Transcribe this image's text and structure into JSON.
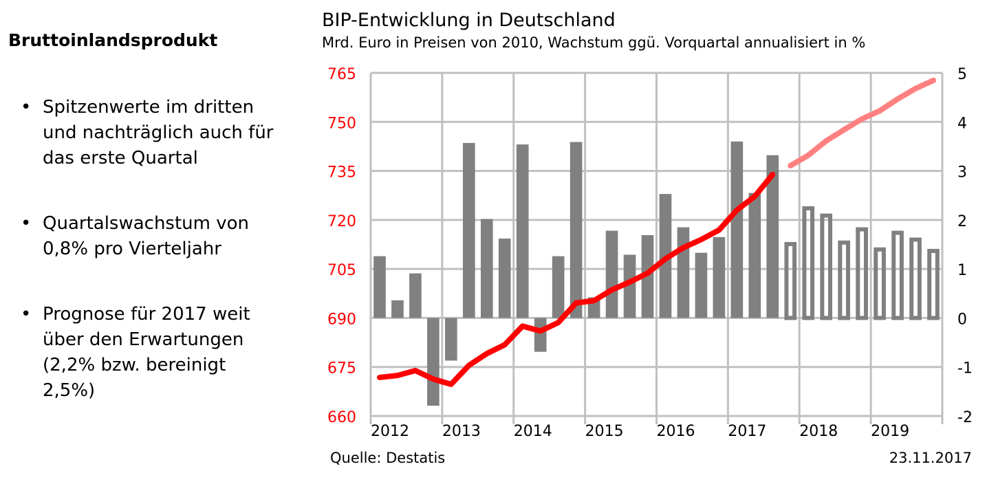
{
  "sidebar": {
    "heading": "Bruttoinlandsprodukt",
    "bullets": [
      "Spitzenwerte im dritten und nachträglich auch für das erste Quartal",
      "Quartalswachstum von 0,8% pro Vierteljahr",
      "Prognose für 2017 weit über den Erwartungen (2,2% bzw. bereinigt 2,5%)"
    ]
  },
  "footer": {
    "source": "Quelle: Destatis",
    "date": "23.11.2017"
  },
  "chart_data": {
    "type": "bar+line",
    "title": "BIP-Entwicklung in Deutschland",
    "subtitle": "Mrd. Euro in Preisen von 2010, Wachstum ggü. Vorquartal annualisiert in %",
    "x_ticks": [
      "2012",
      "2013",
      "2014",
      "2015",
      "2016",
      "2017",
      "2018",
      "2019"
    ],
    "y_left": {
      "range": [
        660,
        765
      ],
      "ticks": [
        660,
        675,
        690,
        705,
        720,
        735,
        750,
        765
      ],
      "color": "#ff0000"
    },
    "y_right": {
      "range": [
        -2,
        5
      ],
      "ticks": [
        -2,
        -1,
        0,
        1,
        2,
        3,
        4,
        5
      ]
    },
    "grid": true,
    "quarters": [
      "2012Q1",
      "2012Q2",
      "2012Q3",
      "2012Q4",
      "2013Q1",
      "2013Q2",
      "2013Q3",
      "2013Q4",
      "2014Q1",
      "2014Q2",
      "2014Q3",
      "2014Q4",
      "2015Q1",
      "2015Q2",
      "2015Q3",
      "2015Q4",
      "2016Q1",
      "2016Q2",
      "2016Q3",
      "2016Q4",
      "2017Q1",
      "2017Q2",
      "2017Q3",
      "2017Q4",
      "2018Q1",
      "2018Q2",
      "2018Q3",
      "2018Q4",
      "2019Q1",
      "2019Q2",
      "2019Q3",
      "2019Q4"
    ],
    "growth_actual": [
      1.26,
      0.36,
      0.91,
      -1.79,
      -0.87,
      3.57,
      2.02,
      1.62,
      3.54,
      -0.69,
      1.26,
      3.59,
      0.42,
      1.78,
      1.29,
      1.69,
      2.53,
      1.85,
      1.33,
      1.65,
      3.6,
      2.55,
      3.32
    ],
    "growth_forecast": [
      1.55,
      2.28,
      2.13,
      1.58,
      1.85,
      1.44,
      1.78,
      1.64,
      1.41
    ],
    "gdp_actual": [
      671.8,
      672.4,
      673.9,
      671.3,
      669.7,
      675.5,
      679.1,
      681.8,
      687.5,
      686.0,
      688.6,
      694.6,
      695.3,
      698.6,
      701.0,
      703.7,
      708.1,
      711.5,
      714.0,
      716.9,
      723.0,
      727.2,
      733.9
    ],
    "gdp_forecast": [
      736.6,
      739.8,
      744.2,
      747.6,
      750.9,
      753.4,
      757.0,
      760.2,
      762.7
    ],
    "colors": {
      "bars": "#808080",
      "gdp": "#ff0000",
      "gdp_forecast": "#ff8080",
      "grid": "#c0c0c0"
    }
  }
}
